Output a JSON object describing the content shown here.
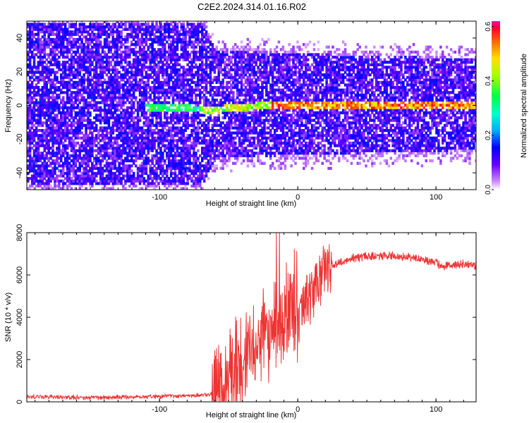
{
  "chart_data": [
    {
      "type": "heatmap",
      "title": "C2E2.2024.314.01.16.R02",
      "xlabel": "Height of straight line (km)",
      "ylabel": "Frequency (Hz)",
      "xlim": [
        -196,
        129
      ],
      "ylim": [
        -50,
        50
      ],
      "xticks": [
        -100,
        0,
        100
      ],
      "yticks": [
        -40,
        -20,
        0,
        20,
        40
      ],
      "grid": false,
      "colorbar": {
        "label": "Normalized spectral amplitude",
        "range": [
          0,
          0.62
        ],
        "ticks": [
          0.0,
          0.2,
          0.4,
          0.6
        ],
        "tick_labels": [
          "0.0",
          "0.2",
          "0.4",
          "0.6"
        ]
      },
      "description_points": {
        "noise_band_halfwidth_hz": [
          [
            -196,
            48
          ],
          [
            -70,
            48
          ],
          [
            -60,
            32
          ],
          [
            0,
            30
          ],
          [
            129,
            27
          ]
        ],
        "line_center_hz": [
          [
            -110,
            -2
          ],
          [
            -60,
            -3
          ],
          [
            -40,
            -2
          ],
          [
            -20,
            0
          ],
          [
            0,
            0
          ],
          [
            60,
            0
          ],
          [
            129,
            0
          ]
        ]
      }
    },
    {
      "type": "line",
      "title": "",
      "xlabel": "Height of straight line (km)",
      "ylabel": "SNR (10 * v/v)",
      "xlim": [
        -196,
        129
      ],
      "ylim": [
        0,
        8000
      ],
      "xticks": [
        -100,
        0,
        100
      ],
      "yticks": [
        0,
        2000,
        4000,
        6000,
        8000
      ],
      "grid": false,
      "series": [
        {
          "color": "#ee3333",
          "x": [
            -196,
            -150,
            -100,
            -80,
            -70,
            -63,
            -60,
            -55,
            -50,
            -45,
            -40,
            -35,
            -30,
            -25,
            -20,
            -15,
            -10,
            -5,
            0,
            5,
            10,
            15,
            20,
            25,
            30,
            40,
            50,
            60,
            70,
            80,
            90,
            100,
            104,
            110,
            120,
            129
          ],
          "y": [
            250,
            200,
            260,
            300,
            320,
            350,
            450,
            700,
            1200,
            1500,
            1800,
            2200,
            2600,
            3000,
            3400,
            3800,
            4000,
            4300,
            3800,
            4700,
            5300,
            5800,
            6200,
            6450,
            6600,
            6800,
            6880,
            6900,
            6880,
            6850,
            6750,
            6600,
            6350,
            6500,
            6500,
            6450
          ]
        }
      ]
    }
  ]
}
